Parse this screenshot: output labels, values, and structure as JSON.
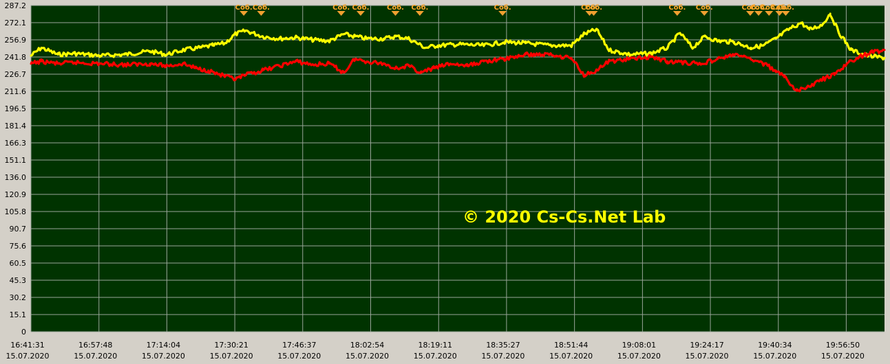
{
  "colors": {
    "panel_background": "#d4d0c8",
    "plot_background": "#003300",
    "grid": "#9aa59a",
    "series_yellow": "#ffff00",
    "series_red": "#ff0000",
    "event_marker": "#f0a030",
    "watermark": "#ffff00"
  },
  "watermark": "© 2020 Cs-Cs.Net Lab",
  "chart_data": {
    "type": "line",
    "title": "",
    "xlabel": "",
    "ylabel": "",
    "grid": true,
    "ylim": [
      0,
      287.2
    ],
    "xlim": [
      "16:41:31",
      "20:06:00"
    ],
    "y_ticks": [
      "0",
      "15.1",
      "30.2",
      "45.3",
      "60.5",
      "75.6",
      "90.7",
      "105.8",
      "120.9",
      "136.0",
      "151.1",
      "166.3",
      "181.4",
      "196.5",
      "211.6",
      "226.7",
      "241.8",
      "256.9",
      "272.1",
      "287.2"
    ],
    "x_ticks": [
      {
        "time": "16:41:31",
        "date": "15.07.2020"
      },
      {
        "time": "16:57:48",
        "date": "15.07.2020"
      },
      {
        "time": "17:14:04",
        "date": "15.07.2020"
      },
      {
        "time": "17:30:21",
        "date": "15.07.2020"
      },
      {
        "time": "17:46:37",
        "date": "15.07.2020"
      },
      {
        "time": "18:02:54",
        "date": "15.07.2020"
      },
      {
        "time": "18:19:11",
        "date": "15.07.2020"
      },
      {
        "time": "18:35:27",
        "date": "15.07.2020"
      },
      {
        "time": "18:51:44",
        "date": "15.07.2020"
      },
      {
        "time": "19:08:01",
        "date": "15.07.2020"
      },
      {
        "time": "19:24:17",
        "date": "15.07.2020"
      },
      {
        "time": "19:40:34",
        "date": "15.07.2020"
      },
      {
        "time": "19:56:50",
        "date": "15.07.2020"
      }
    ],
    "event_label": "Соб.",
    "events": [
      "17:32:30",
      "17:36:40",
      "17:55:50",
      "18:00:30",
      "18:08:50",
      "18:14:40",
      "18:34:30",
      "18:55:20",
      "18:56:20",
      "19:16:20",
      "19:22:50",
      "19:33:50",
      "19:35:50",
      "19:38:20",
      "19:40:50",
      "19:42:20"
    ],
    "series": [
      {
        "color": "yellow",
        "x": [
          "16:41:31",
          "16:44:00",
          "16:48:00",
          "16:52:00",
          "16:58:00",
          "17:04:00",
          "17:10:00",
          "17:14:00",
          "17:18:00",
          "17:22:00",
          "17:25:00",
          "17:28:00",
          "17:30:30",
          "17:33:00",
          "17:37:00",
          "17:41:00",
          "17:45:00",
          "17:49:00",
          "17:53:00",
          "17:56:30",
          "17:59:00",
          "18:02:00",
          "18:06:00",
          "18:09:00",
          "18:12:00",
          "18:16:00",
          "18:19:00",
          "18:24:00",
          "18:30:00",
          "18:35:00",
          "18:40:00",
          "18:46:00",
          "18:51:00",
          "18:54:00",
          "18:57:00",
          "19:00:00",
          "19:05:00",
          "19:10:00",
          "19:14:00",
          "19:17:00",
          "19:20:00",
          "19:23:00",
          "19:26:00",
          "19:30:00",
          "19:34:00",
          "19:37:00",
          "19:40:00",
          "19:43:00",
          "19:46:00",
          "19:48:00",
          "19:51:00",
          "19:53:00",
          "19:55:00",
          "19:58:00",
          "20:02:00",
          "20:06:00"
        ],
        "values": [
          243,
          250,
          244,
          245,
          243,
          244,
          247,
          244,
          248,
          250,
          252,
          254,
          262,
          265,
          260,
          258,
          259,
          257,
          256,
          262,
          260,
          258,
          258,
          260,
          258,
          250,
          252,
          253,
          252,
          255,
          254,
          252,
          252,
          262,
          266,
          248,
          244,
          245,
          250,
          263,
          250,
          260,
          256,
          255,
          250,
          252,
          258,
          266,
          272,
          266,
          270,
          280,
          264,
          248,
          243,
          241
        ]
      },
      {
        "color": "red",
        "x": [
          "16:41:31",
          "16:44:00",
          "16:48:00",
          "16:52:00",
          "16:58:00",
          "17:04:00",
          "17:10:00",
          "17:14:00",
          "17:18:00",
          "17:21:00",
          "17:24:00",
          "17:27:00",
          "17:30:30",
          "17:33:00",
          "17:37:00",
          "17:41:00",
          "17:45:00",
          "17:49:00",
          "17:53:00",
          "17:56:30",
          "17:59:00",
          "18:02:00",
          "18:06:00",
          "18:09:00",
          "18:12:00",
          "18:15:00",
          "18:18:00",
          "18:22:00",
          "18:26:00",
          "18:30:00",
          "18:35:00",
          "18:40:00",
          "18:46:00",
          "18:51:00",
          "18:54:00",
          "18:57:00",
          "19:00:00",
          "19:05:00",
          "19:10:00",
          "19:14:00",
          "19:18:00",
          "19:22:00",
          "19:26:00",
          "19:30:00",
          "19:34:00",
          "19:37:00",
          "19:40:00",
          "19:42:00",
          "19:45:00",
          "19:48:00",
          "19:51:00",
          "19:54:00",
          "19:57:00",
          "20:00:00",
          "20:03:00",
          "20:06:00"
        ],
        "values": [
          236,
          238,
          236,
          237,
          236,
          235,
          236,
          234,
          236,
          232,
          230,
          226,
          222,
          226,
          230,
          234,
          238,
          235,
          236,
          228,
          240,
          238,
          236,
          232,
          234,
          228,
          232,
          236,
          234,
          238,
          240,
          244,
          244,
          241,
          226,
          230,
          238,
          240,
          242,
          238,
          237,
          236,
          240,
          244,
          240,
          236,
          230,
          224,
          212,
          216,
          222,
          226,
          236,
          242,
          246,
          248
        ]
      }
    ]
  }
}
